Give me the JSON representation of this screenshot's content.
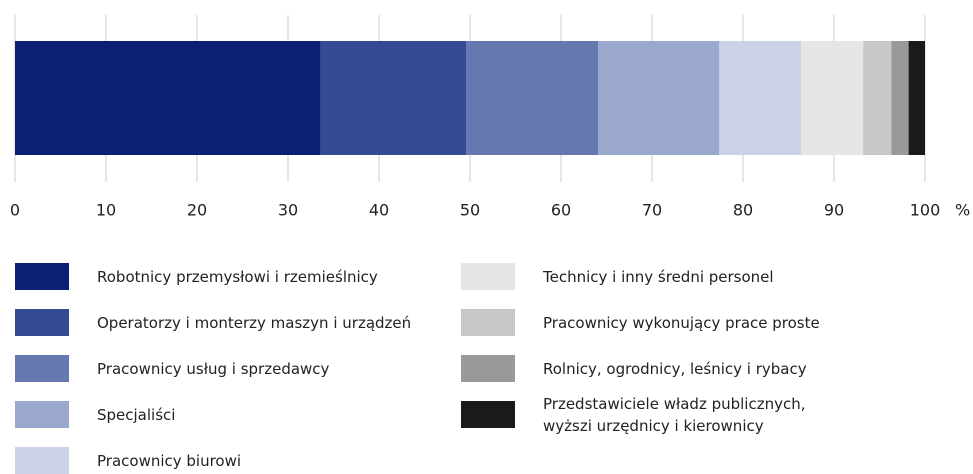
{
  "chart_data": {
    "type": "bar",
    "orientation": "horizontal",
    "stacked": true,
    "x_label": "%",
    "xlim": [
      0,
      100
    ],
    "xticks": [
      0,
      10,
      20,
      30,
      40,
      50,
      60,
      70,
      80,
      90,
      100
    ],
    "grid": true,
    "series": [
      {
        "name": "Robotnicy przemysłowi i rzemieślnicy",
        "color": "#0b1f73",
        "values": [
          33.6
        ]
      },
      {
        "name": "Operatorzy i monterzy maszyn i urządzeń",
        "color": "#354a95",
        "values": [
          16.0
        ]
      },
      {
        "name": "Pracownicy usług i sprzedawcy",
        "color": "#6678b0",
        "values": [
          14.5
        ]
      },
      {
        "name": "Specjaliści",
        "color": "#9aa8cd",
        "values": [
          13.3
        ]
      },
      {
        "name": "Pracownicy biurowi",
        "color": "#ccd3e6",
        "values": [
          9.0
        ]
      },
      {
        "name": "Technicy i inny średni personel",
        "color": "#e6e6e6",
        "values": [
          6.8
        ]
      },
      {
        "name": "Pracownicy wykonujący prace proste",
        "color": "#c8c8c8",
        "values": [
          3.1
        ]
      },
      {
        "name": "Rolnicy, ogrodnicy, leśnicy i rybacy",
        "color": "#999999",
        "values": [
          1.9
        ]
      },
      {
        "name": "Przedstawiciele władz publicznych,\nwyższi urzędnicy i kierownicy",
        "color": "#1a1a1a",
        "values": [
          1.8
        ]
      }
    ]
  }
}
